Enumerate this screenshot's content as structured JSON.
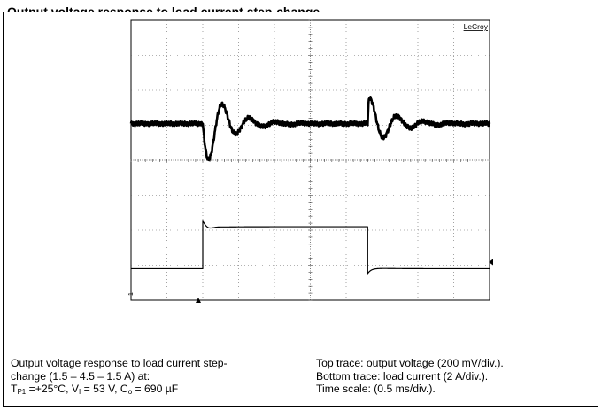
{
  "chart_data": {
    "type": "line",
    "title": "",
    "brand": "LeCroy",
    "marker_label": "1",
    "series": [
      {
        "name": "Top trace: output voltage",
        "unit": "mV",
        "scale_per_div": 200
      },
      {
        "name": "Bottom trace: load current",
        "unit": "A",
        "scale_per_div": 2
      }
    ],
    "time_scale_per_div": 0.5,
    "time_unit": "ms",
    "divisions": {
      "x": 10,
      "y": 8
    },
    "load_steps_A": [
      1.5,
      4.5,
      1.5
    ],
    "step_times_div": [
      2.0,
      6.6
    ],
    "current_levels_div": {
      "low": -3.1,
      "high": -1.9
    },
    "voltage_baseline_div": 1.05,
    "voltage_transient": {
      "undershoot_div": -0.6,
      "overshoot_div": 2.35,
      "ringing_period_div": 0.75,
      "decay_div": 0.6
    },
    "grid": true
  },
  "caption_left": {
    "line1": "Output voltage response to load current step-",
    "line2": "change (1.5 – 4.5 – 1.5 A) at:",
    "t_sym": "T",
    "t_sub": "P1",
    "t_val": " =+25°C, ",
    "v_sym": "V",
    "v_sub": "I",
    "v_val": " = 53 V, ",
    "c_sym": "C",
    "c_sub": "o",
    "c_val": " = 690 µF"
  },
  "caption_right": {
    "line1": "Top trace: output voltage (200 mV/div.).",
    "line2": "Bottom trace: load current (2 A/div.).",
    "line3": "Time scale: (0.5 ms/div.)."
  },
  "heading_fragment": "Output voltage response to load current step-change"
}
